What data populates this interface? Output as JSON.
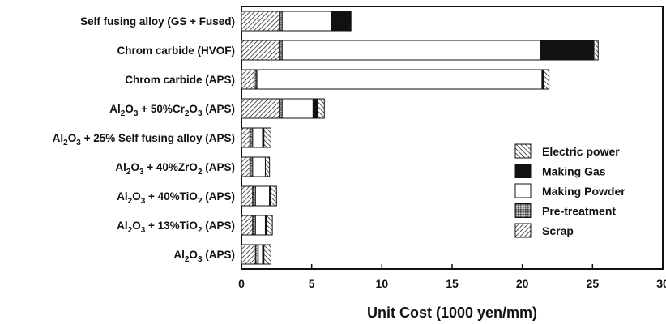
{
  "chart_data": {
    "type": "bar",
    "orientation": "horizontal",
    "stacked": true,
    "title": "",
    "xlabel": "Unit Cost (1000 yen/mm)",
    "ylabel": "",
    "xlim": [
      0,
      30
    ],
    "xticks": [
      0,
      5,
      10,
      15,
      20,
      25,
      30
    ],
    "grid": false,
    "legend_position": "right",
    "categories": [
      "Self fusing alloy (GS + Fused)",
      "Chrom carbide (HVOF)",
      "Chrom carbide (APS)",
      "Al2O3 + 50%Cr2O3 (APS)",
      "Al2O3 + 25% Self fusing alloy (APS)",
      "Al2O3 + 40%ZrO2 (APS)",
      "Al2O3 + 40%TiO2 (APS)",
      "Al2O3 + 13%TiO2 (APS)",
      "Al2O3 (APS)"
    ],
    "category_labels": [
      [
        {
          "t": "Self fusing alloy (GS + Fused)"
        }
      ],
      [
        {
          "t": "Chrom carbide (HVOF)"
        }
      ],
      [
        {
          "t": "Chrom carbide (APS)"
        }
      ],
      [
        {
          "t": "Al"
        },
        {
          "t": "2",
          "sub": true
        },
        {
          "t": "O"
        },
        {
          "t": "3",
          "sub": true
        },
        {
          "t": " + 50%Cr"
        },
        {
          "t": "2",
          "sub": true
        },
        {
          "t": "O"
        },
        {
          "t": "3",
          "sub": true
        },
        {
          "t": " (APS)"
        }
      ],
      [
        {
          "t": "Al"
        },
        {
          "t": "2",
          "sub": true
        },
        {
          "t": "O"
        },
        {
          "t": "3",
          "sub": true
        },
        {
          "t": " + 25% Self fusing alloy (APS)"
        }
      ],
      [
        {
          "t": "Al"
        },
        {
          "t": "2",
          "sub": true
        },
        {
          "t": "O"
        },
        {
          "t": "3",
          "sub": true
        },
        {
          "t": " + 40%ZrO"
        },
        {
          "t": "2",
          "sub": true
        },
        {
          "t": " (APS)"
        }
      ],
      [
        {
          "t": "Al"
        },
        {
          "t": "2",
          "sub": true
        },
        {
          "t": "O"
        },
        {
          "t": "3",
          "sub": true
        },
        {
          "t": " + 40%TiO"
        },
        {
          "t": "2",
          "sub": true
        },
        {
          "t": " (APS)"
        }
      ],
      [
        {
          "t": "Al"
        },
        {
          "t": "2",
          "sub": true
        },
        {
          "t": "O"
        },
        {
          "t": "3",
          "sub": true
        },
        {
          "t": " + 13%TiO"
        },
        {
          "t": "2",
          "sub": true
        },
        {
          "t": " (APS)"
        }
      ],
      [
        {
          "t": "Al"
        },
        {
          "t": "2",
          "sub": true
        },
        {
          "t": "O"
        },
        {
          "t": "3",
          "sub": true
        },
        {
          "t": " (APS)"
        }
      ]
    ],
    "series": [
      {
        "name": "Scrap",
        "pattern": "diagonal-hatch",
        "values": [
          2.7,
          2.7,
          0.9,
          2.7,
          0.6,
          0.6,
          0.8,
          0.8,
          1.0
        ]
      },
      {
        "name": "Pre-treatment",
        "pattern": "dotted-gray",
        "values": [
          0.2,
          0.2,
          0.2,
          0.2,
          0.2,
          0.2,
          0.2,
          0.2,
          0.2
        ]
      },
      {
        "name": "Making Powder",
        "pattern": "white",
        "values": [
          3.5,
          18.4,
          20.3,
          2.2,
          0.7,
          0.9,
          1.0,
          0.7,
          0.3
        ]
      },
      {
        "name": "Making Gas",
        "pattern": "black",
        "values": [
          1.4,
          3.8,
          0.1,
          0.3,
          0.1,
          0.0,
          0.1,
          0.1,
          0.1
        ]
      },
      {
        "name": "Electric power",
        "pattern": "reverse-hatch",
        "values": [
          0.0,
          0.3,
          0.4,
          0.5,
          0.5,
          0.3,
          0.4,
          0.4,
          0.5
        ]
      }
    ],
    "legend_order": [
      "Electric power",
      "Making Gas",
      "Making Powder",
      "Pre-treatment",
      "Scrap"
    ]
  }
}
